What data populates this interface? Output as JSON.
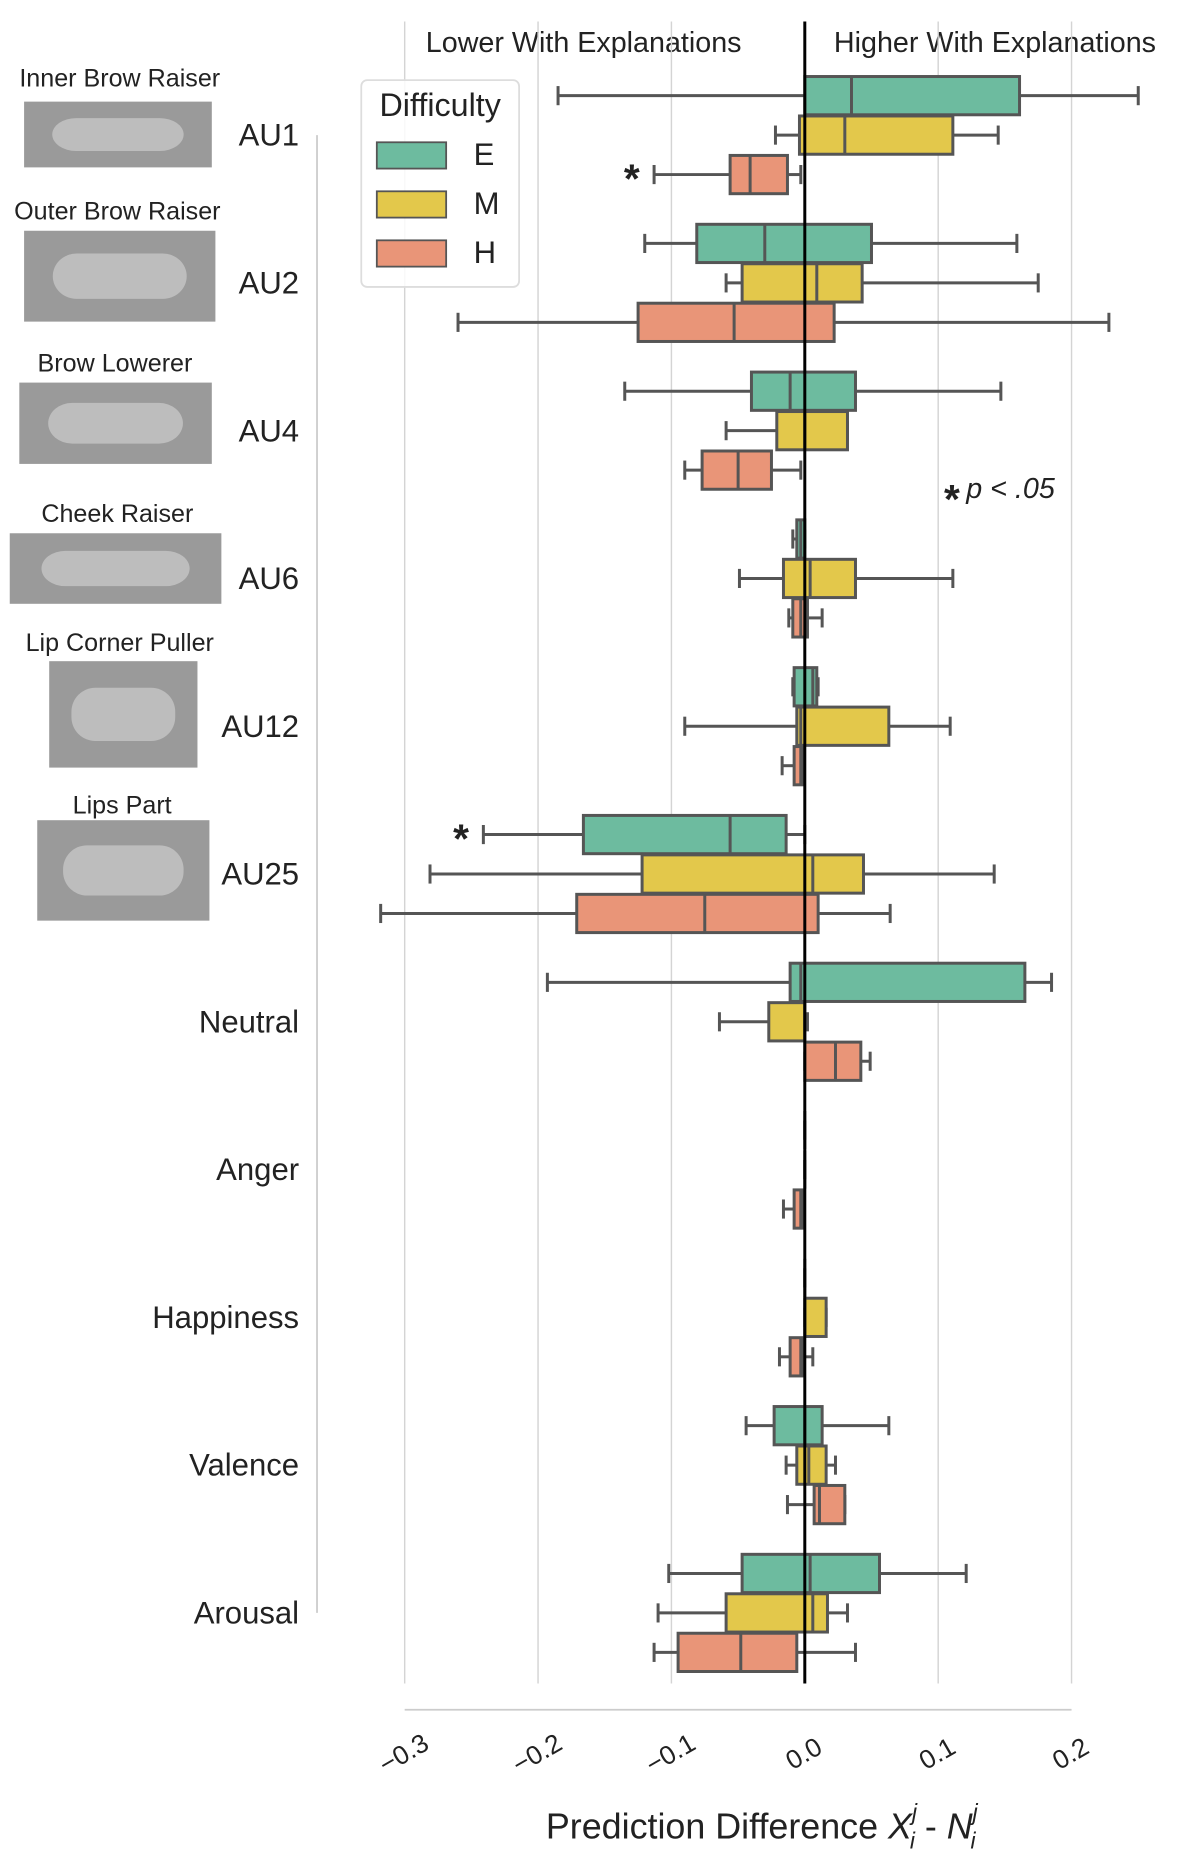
{
  "chart_data": {
    "type": "boxplot",
    "orientation": "horizontal",
    "header_left": "Lower With Explanations",
    "header_right": "Higher With Explanations",
    "categories": [
      "AU1",
      "AU2",
      "AU4",
      "AU6",
      "AU12",
      "AU25",
      "Neutral",
      "Anger",
      "Happiness",
      "Valence",
      "Arousal"
    ],
    "au_names": [
      "Inner Brow Raiser",
      "Outer Brow Raiser",
      "Brow Lowerer",
      "Cheek Raiser",
      "Lip Corner Puller",
      "Lips Part"
    ],
    "legend_title": "Difficulty",
    "legend_position": "upper left",
    "xlabel": {
      "text": "Prediction Difference",
      "operator": "-",
      "terms": [
        {
          "base": "X",
          "sub": "i",
          "sup": "j"
        },
        {
          "base": "N",
          "sub": "i",
          "sup": "j"
        }
      ]
    },
    "xlim": [
      -0.32,
      0.26
    ],
    "xticks": [
      {
        "value": -0.3,
        "label": "−0.3"
      },
      {
        "value": -0.2,
        "label": "−0.2"
      },
      {
        "value": -0.1,
        "label": "−0.1"
      },
      {
        "value": 0,
        "label": "0.0"
      },
      0.1,
      0.2
    ],
    "grid": true,
    "zero_line": 0,
    "significance": {
      "marker": "*",
      "note": "p < .05",
      "marks": [
        {
          "category": "AU1",
          "series": "H"
        },
        {
          "category": "AU25",
          "series": "E"
        }
      ]
    },
    "series": [
      {
        "name": "E",
        "color": "#6dbb9f",
        "values": [
          {
            "whislo": -0.185,
            "q1": 0.0,
            "med": 0.035,
            "q3": 0.161,
            "whishi": 0.25
          },
          {
            "whislo": -0.12,
            "q1": -0.081,
            "med": -0.03,
            "q3": 0.05,
            "whishi": 0.159
          },
          {
            "whislo": -0.135,
            "q1": -0.04,
            "med": -0.011,
            "q3": 0.038,
            "whishi": 0.147
          },
          {
            "whislo": -0.009,
            "q1": -0.006,
            "med": -0.003,
            "q3": 0.0,
            "whishi": 0.0
          },
          {
            "whislo": -0.009,
            "q1": -0.008,
            "med": 0.006,
            "q3": 0.009,
            "whishi": 0.01
          },
          {
            "whislo": -0.241,
            "q1": -0.166,
            "med": -0.056,
            "q3": -0.014,
            "whishi": 0.0
          },
          {
            "whislo": -0.193,
            "q1": -0.011,
            "med": -0.003,
            "q3": 0.165,
            "whishi": 0.185
          },
          {
            "whislo": 0.0,
            "q1": 0.0,
            "med": 0.0,
            "q3": 0.0,
            "whishi": 0.0
          },
          {
            "whislo": 0.0,
            "q1": 0.0,
            "med": 0.0,
            "q3": 0.0,
            "whishi": 0.0
          },
          {
            "whislo": -0.044,
            "q1": -0.023,
            "med": 0.0,
            "q3": 0.013,
            "whishi": 0.063
          },
          {
            "whislo": -0.102,
            "q1": -0.047,
            "med": 0.004,
            "q3": 0.056,
            "whishi": 0.121
          }
        ]
      },
      {
        "name": "M",
        "color": "#e3c84b",
        "values": [
          {
            "whislo": -0.022,
            "q1": -0.004,
            "med": 0.03,
            "q3": 0.111,
            "whishi": 0.145
          },
          {
            "whislo": -0.059,
            "q1": -0.047,
            "med": 0.009,
            "q3": 0.043,
            "whishi": 0.175
          },
          {
            "whislo": -0.059,
            "q1": -0.021,
            "med": 0.0,
            "q3": 0.032,
            "whishi": 0.032
          },
          {
            "whislo": -0.049,
            "q1": -0.016,
            "med": 0.004,
            "q3": 0.038,
            "whishi": 0.111
          },
          {
            "whislo": -0.09,
            "q1": -0.006,
            "med": -0.003,
            "q3": 0.063,
            "whishi": 0.109
          },
          {
            "whislo": -0.281,
            "q1": -0.122,
            "med": 0.006,
            "q3": 0.044,
            "whishi": 0.142
          },
          {
            "whislo": -0.064,
            "q1": -0.027,
            "med": 0.0,
            "q3": 0.0,
            "whishi": 0.002
          },
          {
            "whislo": 0.0,
            "q1": 0.0,
            "med": 0.0,
            "q3": 0.0,
            "whishi": 0.0
          },
          {
            "whislo": 0.0,
            "q1": 0.0,
            "med": 0.0,
            "q3": 0.016,
            "whishi": 0.016
          },
          {
            "whislo": -0.014,
            "q1": -0.006,
            "med": 0.003,
            "q3": 0.016,
            "whishi": 0.023
          },
          {
            "whislo": -0.11,
            "q1": -0.059,
            "med": 0.006,
            "q3": 0.017,
            "whishi": 0.032
          }
        ]
      },
      {
        "name": "H",
        "color": "#e99578",
        "values": [
          {
            "whislo": -0.113,
            "q1": -0.056,
            "med": -0.041,
            "q3": -0.013,
            "whishi": -0.003
          },
          {
            "whislo": -0.26,
            "q1": -0.125,
            "med": -0.053,
            "q3": 0.022,
            "whishi": 0.228
          },
          {
            "whislo": -0.09,
            "q1": -0.077,
            "med": -0.05,
            "q3": -0.025,
            "whishi": -0.003
          },
          {
            "whislo": -0.012,
            "q1": -0.009,
            "med": -0.003,
            "q3": 0.002,
            "whishi": 0.013
          },
          {
            "whislo": -0.017,
            "q1": -0.008,
            "med": -0.003,
            "q3": -0.001,
            "whishi": -0.001
          },
          {
            "whislo": -0.318,
            "q1": -0.171,
            "med": -0.075,
            "q3": 0.01,
            "whishi": 0.064
          },
          {
            "whislo": 0.0,
            "q1": 0.0,
            "med": 0.023,
            "q3": 0.042,
            "whishi": 0.049
          },
          {
            "whislo": -0.016,
            "q1": -0.008,
            "med": -0.003,
            "q3": -0.001,
            "whishi": -0.001
          },
          {
            "whislo": -0.019,
            "q1": -0.011,
            "med": -0.003,
            "q3": -0.001,
            "whishi": 0.006
          },
          {
            "whislo": -0.013,
            "q1": 0.007,
            "med": 0.011,
            "q3": 0.03,
            "whishi": 0.03
          },
          {
            "whislo": -0.113,
            "q1": -0.095,
            "med": -0.048,
            "q3": -0.006,
            "whishi": 0.038
          }
        ]
      }
    ]
  }
}
